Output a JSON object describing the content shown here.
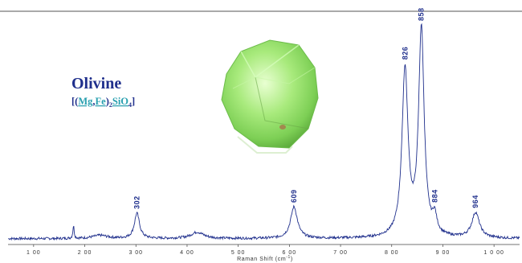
{
  "colors": {
    "spectrum": "#1f2f8c",
    "title": "#1f2f8c",
    "formula_elements": "#2aa0b0",
    "axis": "#444444",
    "mineral_photo": "#9be07a"
  },
  "header": {
    "mineral_name": "Olivine",
    "formula": {
      "open": "[(",
      "el1": "Mg",
      "comma": ",",
      "el2": "Fe",
      "close1": ")",
      "sub1": "2",
      "el3": "SiO",
      "sub2": "4",
      "close2": "]"
    }
  },
  "photo": {
    "icon": "olivine-crystal-photo"
  },
  "chart_data": {
    "type": "line",
    "title": "",
    "xlabel": "Raman Shift (cm",
    "xlabel_sup": "-1",
    "xlabel_close": ")",
    "ylabel": "",
    "xlim": [
      50,
      1050
    ],
    "ylim": [
      0,
      1
    ],
    "grid": false,
    "x_ticks": [
      100,
      200,
      300,
      400,
      500,
      600,
      700,
      800,
      900,
      1000
    ],
    "x_tick_labels": [
      "1 00",
      "2 00",
      "3 00",
      "4 00",
      "5 00",
      "6 00",
      "7 00",
      "8 00",
      "9 00",
      "1 0 00"
    ],
    "peak_labels": [
      {
        "x": 302,
        "label": "302"
      },
      {
        "x": 609,
        "label": "609"
      },
      {
        "x": 826,
        "label": "826"
      },
      {
        "x": 858,
        "label": "858"
      },
      {
        "x": 884,
        "label": "884"
      },
      {
        "x": 964,
        "label": "964"
      }
    ],
    "baseline": 0.02,
    "peaks": [
      {
        "x": 178,
        "h": 0.06,
        "w": 1.5
      },
      {
        "x": 230,
        "h": 0.015,
        "w": 18
      },
      {
        "x": 302,
        "h": 0.12,
        "w": 6
      },
      {
        "x": 420,
        "h": 0.03,
        "w": 15
      },
      {
        "x": 609,
        "h": 0.15,
        "w": 8
      },
      {
        "x": 826,
        "h": 0.79,
        "w": 7
      },
      {
        "x": 858,
        "h": 0.98,
        "w": 6.5
      },
      {
        "x": 884,
        "h": 0.08,
        "w": 5
      },
      {
        "x": 964,
        "h": 0.12,
        "w": 9
      }
    ],
    "noise": 0.006
  }
}
